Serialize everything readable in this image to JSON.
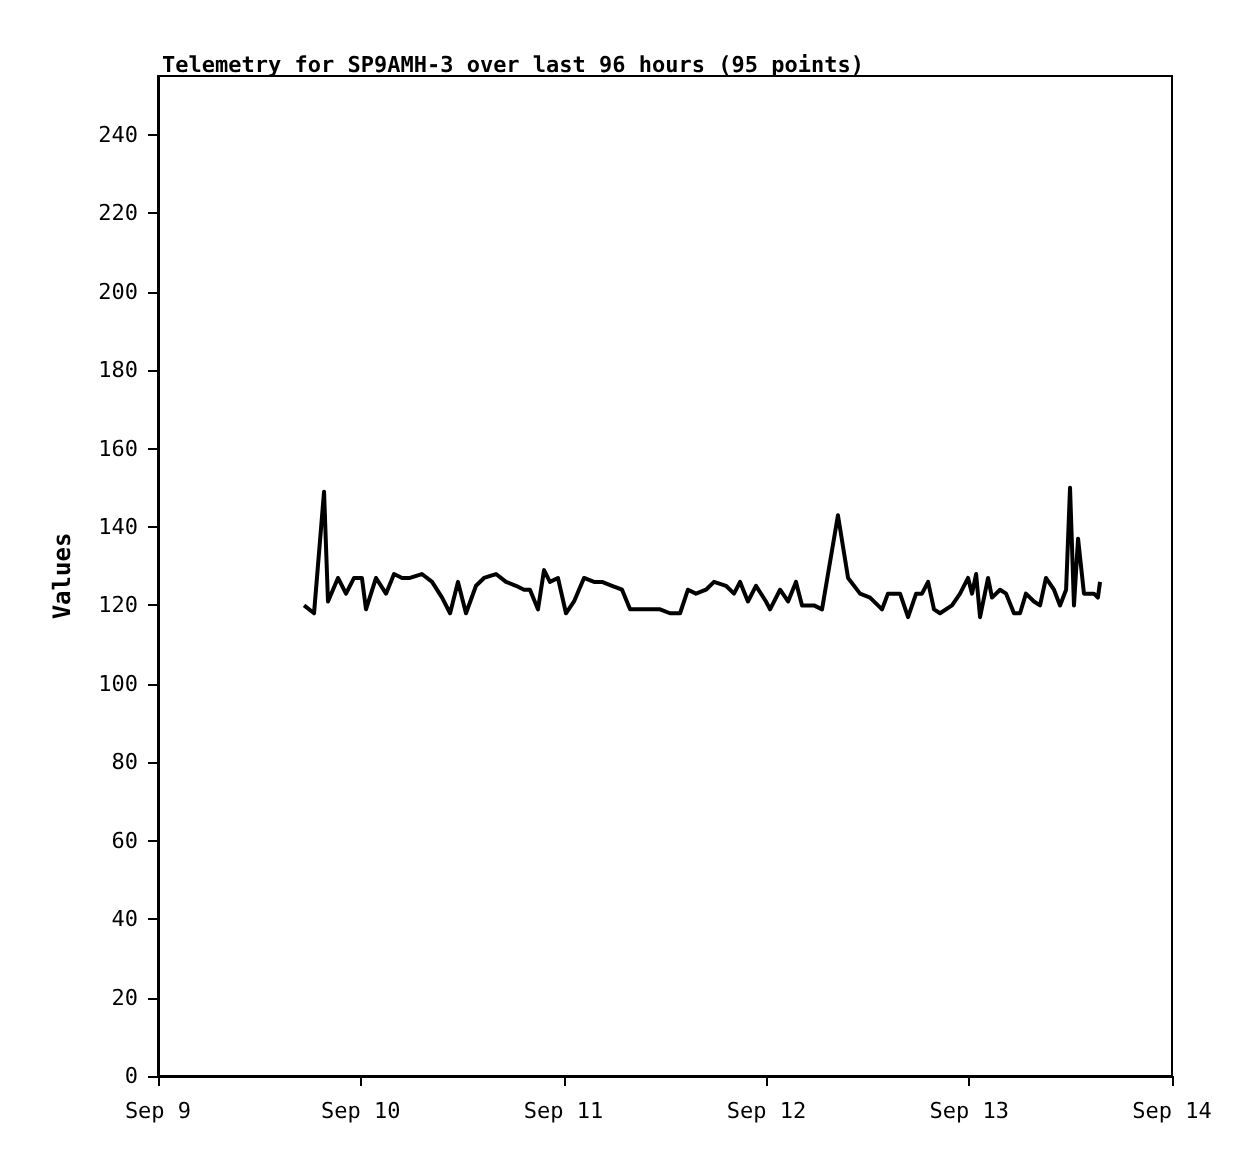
{
  "chart_data": {
    "type": "line",
    "title": "Telemetry for SP9AMH-3 over last 96 hours (95 points)",
    "ylabel": "Values",
    "xlim": [
      "--09-09",
      "--09-14"
    ],
    "xticks": [
      {
        "value": "--09-09",
        "label": "Sep 9"
      },
      {
        "value": "--09-10",
        "label": "Sep 10"
      },
      {
        "value": "--09-11",
        "label": "Sep 11"
      },
      {
        "value": "--09-12",
        "label": "Sep 12"
      },
      {
        "value": "--09-13",
        "label": "Sep 13"
      },
      {
        "value": "--09-14",
        "label": "Sep 14"
      }
    ],
    "ylim": [
      0,
      255
    ],
    "yticks": [
      0,
      20,
      40,
      60,
      80,
      100,
      120,
      140,
      160,
      180,
      200,
      220,
      240
    ],
    "grid": false,
    "marker": "none",
    "line_style": "solid",
    "series": [
      {
        "color": "#000000",
        "x": [
          "--09-09T17:17",
          "--09-09T18:28",
          "--09-09T19:39",
          "--09-09T20:07",
          "--09-09T21:18",
          "--09-09T22:15",
          "--09-09T23:12",
          "--09-10T00:08",
          "--09-10T00:37",
          "--09-10T01:48",
          "--09-10T02:59",
          "--09-10T03:56",
          "--09-10T04:53",
          "--09-10T05:49",
          "--09-10T07:14",
          "--09-10T08:26",
          "--09-10T09:37",
          "--09-10T10:34",
          "--09-10T11:30",
          "--09-10T12:27",
          "--09-10T13:38",
          "--09-10T14:35",
          "--09-10T16:00",
          "--09-10T17:11",
          "--09-10T18:22",
          "--09-10T19:19",
          "--09-10T20:01",
          "--09-10T20:58",
          "--09-10T21:41",
          "--09-10T22:23",
          "--09-10T23:20",
          "--09-11T00:17",
          "--09-11T01:14",
          "--09-11T02:25",
          "--09-11T03:36",
          "--09-11T04:33",
          "--09-11T05:44",
          "--09-11T06:55",
          "--09-11T07:52",
          "--09-11T09:02",
          "--09-11T10:14",
          "--09-11T11:25",
          "--09-11T12:35",
          "--09-11T13:47",
          "--09-11T14:43",
          "--09-11T15:40",
          "--09-11T16:51",
          "--09-11T17:48",
          "--09-11T19:13",
          "--09-11T20:10",
          "--09-11T20:53",
          "--09-11T21:49",
          "--09-11T22:46",
          "--09-11T23:57",
          "--09-12T00:26",
          "--09-12T01:37",
          "--09-12T02:34",
          "--09-12T03:30",
          "--09-12T04:13",
          "--09-12T05:38",
          "--09-12T06:35",
          "--09-12T08:28",
          "--09-12T09:40",
          "--09-12T11:05",
          "--09-12T12:16",
          "--09-12T13:41",
          "--09-12T14:23",
          "--09-12T15:49",
          "--09-12T16:46",
          "--09-12T17:43",
          "--09-12T18:25",
          "--09-12T19:08",
          "--09-12T19:50",
          "--09-12T20:33",
          "--09-12T21:58",
          "--09-12T22:55",
          "--09-12T23:52",
          "--09-13T00:20",
          "--09-13T00:49",
          "--09-13T01:17",
          "--09-13T02:14",
          "--09-13T02:42",
          "--09-13T03:39",
          "--09-13T04:22",
          "--09-13T05:18",
          "--09-13T06:01",
          "--09-13T06:43",
          "--09-13T07:40",
          "--09-13T08:23",
          "--09-13T09:05",
          "--09-13T10:02",
          "--09-13T10:45",
          "--09-13T11:28",
          "--09-13T11:56",
          "--09-13T12:24",
          "--09-13T12:53",
          "--09-13T13:35",
          "--09-13T14:46",
          "--09-13T15:14",
          "--09-13T15:29"
        ],
        "values": [
          120,
          118,
          149,
          121,
          127,
          123,
          127,
          127,
          119,
          127,
          123,
          128,
          127,
          127,
          128,
          126,
          122,
          118,
          126,
          118,
          125,
          127,
          128,
          126,
          125,
          124,
          124,
          119,
          129,
          126,
          127,
          118,
          121,
          127,
          126,
          126,
          125,
          124,
          119,
          119,
          119,
          119,
          118,
          118,
          124,
          123,
          124,
          126,
          125,
          123,
          126,
          121,
          125,
          121,
          119,
          124,
          121,
          126,
          120,
          120,
          119,
          143,
          127,
          123,
          122,
          119,
          123,
          123,
          117,
          123,
          123,
          126,
          119,
          118,
          120,
          123,
          127,
          123,
          128,
          117,
          127,
          122,
          124,
          123,
          118,
          118,
          123,
          121,
          120,
          127,
          124,
          120,
          124,
          150,
          120,
          137,
          123,
          123,
          122,
          126
        ]
      }
    ]
  }
}
